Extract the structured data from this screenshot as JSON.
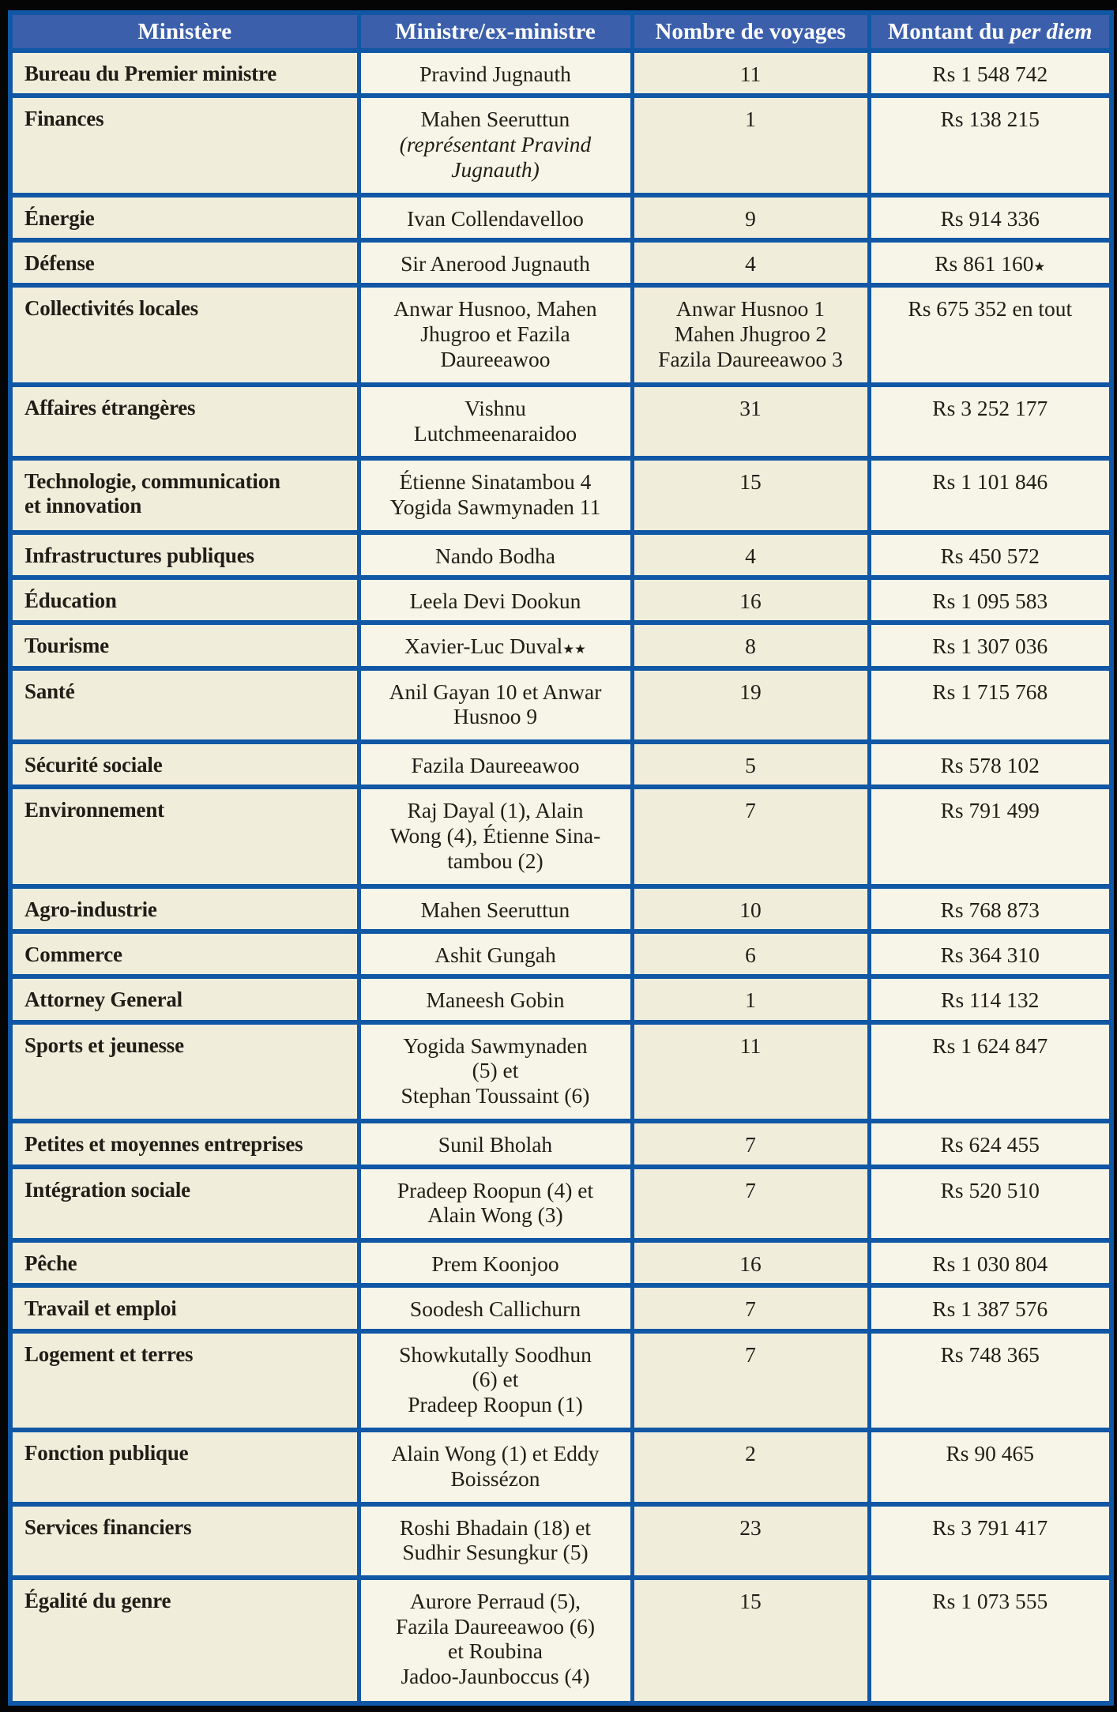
{
  "colors": {
    "frame_black": "#050505",
    "border_blue": "#1057a5",
    "header_blue": "#3b5fab",
    "beige": "#f0eedb",
    "cream": "#f7f5e7",
    "text_dark": "#211d17"
  },
  "table": {
    "headers": [
      {
        "segments": [
          {
            "t": "Ministère"
          }
        ]
      },
      {
        "segments": [
          {
            "t": "Ministre/ex-ministre"
          }
        ]
      },
      {
        "segments": [
          {
            "t": "Nombre de voyages"
          }
        ]
      },
      {
        "segments": [
          {
            "t": "Montant du "
          },
          {
            "t": "per diem",
            "s": "i"
          }
        ]
      }
    ],
    "rows": [
      {
        "ministry": [
          {
            "t": "Bureau du Premier ministre"
          }
        ],
        "minister": [
          {
            "t": "Pravind Jugnauth"
          }
        ],
        "trips": [
          {
            "t": "11"
          }
        ],
        "amount": [
          {
            "t": "Rs 1 548 742"
          }
        ]
      },
      {
        "ministry": [
          {
            "t": "Finances"
          }
        ],
        "minister": [
          {
            "t": "Mahen Seeruttun\n"
          },
          {
            "t": "(représentant Pravind\nJugnauth)",
            "s": "i"
          }
        ],
        "trips": [
          {
            "t": "1"
          }
        ],
        "amount": [
          {
            "t": "Rs 138 215"
          }
        ]
      },
      {
        "ministry": [
          {
            "t": "Énergie"
          }
        ],
        "minister": [
          {
            "t": "Ivan Collendavelloo"
          }
        ],
        "trips": [
          {
            "t": "9"
          }
        ],
        "amount": [
          {
            "t": "Rs 914 336"
          }
        ]
      },
      {
        "ministry": [
          {
            "t": "Défense"
          }
        ],
        "minister": [
          {
            "t": "Sir Anerood Jugnauth"
          }
        ],
        "trips": [
          {
            "t": "4"
          }
        ],
        "amount": [
          {
            "t": "Rs 861 160"
          },
          {
            "t": "★",
            "s": "sup"
          }
        ]
      },
      {
        "ministry": [
          {
            "t": "Collectivités locales"
          }
        ],
        "minister": [
          {
            "t": "Anwar Husnoo, Mahen\nJhugroo et Fazila\nDaureeawoo"
          }
        ],
        "trips": [
          {
            "t": "Anwar Husnoo 1\nMahen Jhugroo 2\nFazila Daureeawoo 3"
          }
        ],
        "amount": [
          {
            "t": "Rs 675 352 en tout"
          }
        ]
      },
      {
        "ministry": [
          {
            "t": "Affaires étrangères"
          }
        ],
        "minister": [
          {
            "t": "Vishnu\nLutchmeenaraidoo"
          }
        ],
        "trips": [
          {
            "t": "31"
          }
        ],
        "amount": [
          {
            "t": "Rs 3 252 177"
          }
        ]
      },
      {
        "ministry": [
          {
            "t": "Technologie, communication\net innovation"
          }
        ],
        "minister": [
          {
            "t": "Étienne Sinatambou 4\nYogida Sawmynaden 11"
          }
        ],
        "trips": [
          {
            "t": "15"
          }
        ],
        "amount": [
          {
            "t": "Rs 1 101 846"
          }
        ]
      },
      {
        "ministry": [
          {
            "t": "Infrastructures publiques"
          }
        ],
        "minister": [
          {
            "t": "Nando Bodha"
          }
        ],
        "trips": [
          {
            "t": "4"
          }
        ],
        "amount": [
          {
            "t": "Rs 450 572"
          }
        ]
      },
      {
        "ministry": [
          {
            "t": "Éducation"
          }
        ],
        "minister": [
          {
            "t": "Leela Devi Dookun"
          }
        ],
        "trips": [
          {
            "t": "16"
          }
        ],
        "amount": [
          {
            "t": "Rs 1 095 583"
          }
        ]
      },
      {
        "ministry": [
          {
            "t": "Tourisme"
          }
        ],
        "minister": [
          {
            "t": "Xavier-Luc Duval"
          },
          {
            "t": "★★",
            "s": "sup"
          }
        ],
        "trips": [
          {
            "t": "8"
          }
        ],
        "amount": [
          {
            "t": "Rs 1 307 036"
          }
        ]
      },
      {
        "ministry": [
          {
            "t": "Santé"
          }
        ],
        "minister": [
          {
            "t": "Anil Gayan 10 et Anwar\nHusnoo 9"
          }
        ],
        "trips": [
          {
            "t": "19"
          }
        ],
        "amount": [
          {
            "t": "Rs 1 715 768"
          }
        ]
      },
      {
        "ministry": [
          {
            "t": "Sécurité sociale"
          }
        ],
        "minister": [
          {
            "t": "Fazila Daureeawoo"
          }
        ],
        "trips": [
          {
            "t": "5"
          }
        ],
        "amount": [
          {
            "t": "Rs 578 102"
          }
        ]
      },
      {
        "ministry": [
          {
            "t": "Environnement"
          }
        ],
        "minister": [
          {
            "t": "Raj Dayal (1), Alain\nWong (4), Étienne Sina-\ntambou (2)"
          }
        ],
        "trips": [
          {
            "t": "7"
          }
        ],
        "amount": [
          {
            "t": "Rs 791 499"
          }
        ]
      },
      {
        "ministry": [
          {
            "t": "Agro-industrie"
          }
        ],
        "minister": [
          {
            "t": "Mahen Seeruttun"
          }
        ],
        "trips": [
          {
            "t": "10"
          }
        ],
        "amount": [
          {
            "t": "Rs 768 873"
          }
        ]
      },
      {
        "ministry": [
          {
            "t": "Commerce"
          }
        ],
        "minister": [
          {
            "t": "Ashit Gungah"
          }
        ],
        "trips": [
          {
            "t": "6"
          }
        ],
        "amount": [
          {
            "t": "Rs 364 310"
          }
        ]
      },
      {
        "ministry": [
          {
            "t": "Attorney General"
          }
        ],
        "minister": [
          {
            "t": "Maneesh Gobin"
          }
        ],
        "trips": [
          {
            "t": "1"
          }
        ],
        "amount": [
          {
            "t": "Rs 114 132"
          }
        ]
      },
      {
        "ministry": [
          {
            "t": "Sports et jeunesse"
          }
        ],
        "minister": [
          {
            "t": "Yogida Sawmynaden\n(5) et\nStephan Toussaint (6)"
          }
        ],
        "trips": [
          {
            "t": "11"
          }
        ],
        "amount": [
          {
            "t": "Rs 1 624 847"
          }
        ]
      },
      {
        "ministry": [
          {
            "t": "Petites et moyennes entreprises"
          }
        ],
        "minister": [
          {
            "t": "Sunil Bholah"
          }
        ],
        "trips": [
          {
            "t": "7"
          }
        ],
        "amount": [
          {
            "t": "Rs 624 455"
          }
        ]
      },
      {
        "ministry": [
          {
            "t": "Intégration sociale"
          }
        ],
        "minister": [
          {
            "t": "Pradeep Roopun (4) et\nAlain Wong (3)"
          }
        ],
        "trips": [
          {
            "t": "7"
          }
        ],
        "amount": [
          {
            "t": "Rs 520 510"
          }
        ]
      },
      {
        "ministry": [
          {
            "t": "Pêche"
          }
        ],
        "minister": [
          {
            "t": "Prem Koonjoo"
          }
        ],
        "trips": [
          {
            "t": "16"
          }
        ],
        "amount": [
          {
            "t": "Rs 1 030 804"
          }
        ]
      },
      {
        "ministry": [
          {
            "t": "Travail et emploi"
          }
        ],
        "minister": [
          {
            "t": "Soodesh Callichurn"
          }
        ],
        "trips": [
          {
            "t": "7"
          }
        ],
        "amount": [
          {
            "t": "Rs 1 387 576"
          }
        ]
      },
      {
        "ministry": [
          {
            "t": "Logement et terres"
          }
        ],
        "minister": [
          {
            "t": "Showkutally Soodhun\n(6) et\nPradeep Roopun (1)"
          }
        ],
        "trips": [
          {
            "t": "7"
          }
        ],
        "amount": [
          {
            "t": "Rs 748 365"
          }
        ]
      },
      {
        "ministry": [
          {
            "t": "Fonction publique"
          }
        ],
        "minister": [
          {
            "t": "Alain Wong (1) et Eddy\nBoissézon"
          }
        ],
        "trips": [
          {
            "t": "2"
          }
        ],
        "amount": [
          {
            "t": "Rs 90 465"
          }
        ]
      },
      {
        "ministry": [
          {
            "t": "Services financiers"
          }
        ],
        "minister": [
          {
            "t": "Roshi Bhadain (18) et\nSudhir Sesungkur (5)"
          }
        ],
        "trips": [
          {
            "t": "23"
          }
        ],
        "amount": [
          {
            "t": "Rs 3 791 417"
          }
        ]
      },
      {
        "ministry": [
          {
            "t": "Égalité du genre"
          }
        ],
        "minister": [
          {
            "t": "Aurore Perraud (5),\nFazila Daureeawoo (6)\net Roubina\nJadoo-Jaunboccus (4)"
          }
        ],
        "trips": [
          {
            "t": "15"
          }
        ],
        "amount": [
          {
            "t": "Rs 1 073 555"
          }
        ]
      }
    ]
  },
  "chart_data": {
    "type": "table",
    "title": "Montant du per diem par ministère",
    "columns": [
      "Ministère",
      "Ministre/ex-ministre",
      "Nombre de voyages",
      "Montant du per diem"
    ],
    "rows": [
      [
        "Bureau du Premier ministre",
        "Pravind Jugnauth",
        "11",
        "Rs 1 548 742"
      ],
      [
        "Finances",
        "Mahen Seeruttun (représentant Pravind Jugnauth)",
        "1",
        "Rs 138 215"
      ],
      [
        "Énergie",
        "Ivan Collendavelloo",
        "9",
        "Rs 914 336"
      ],
      [
        "Défense",
        "Sir Anerood Jugnauth",
        "4",
        "Rs 861 160★"
      ],
      [
        "Collectivités locales",
        "Anwar Husnoo, Mahen Jhugroo et Fazila Daureeawoo",
        "Anwar Husnoo 1; Mahen Jhugroo 2; Fazila Daureeawoo 3",
        "Rs 675 352 en tout"
      ],
      [
        "Affaires étrangères",
        "Vishnu Lutchmeenaraidoo",
        "31",
        "Rs 3 252 177"
      ],
      [
        "Technologie, communication et innovation",
        "Étienne Sinatambou 4; Yogida Sawmynaden 11",
        "15",
        "Rs 1 101 846"
      ],
      [
        "Infrastructures publiques",
        "Nando Bodha",
        "4",
        "Rs 450 572"
      ],
      [
        "Éducation",
        "Leela Devi Dookun",
        "16",
        "Rs 1 095 583"
      ],
      [
        "Tourisme",
        "Xavier-Luc Duval★★",
        "8",
        "Rs 1 307 036"
      ],
      [
        "Santé",
        "Anil Gayan 10 et Anwar Husnoo 9",
        "19",
        "Rs 1 715 768"
      ],
      [
        "Sécurité sociale",
        "Fazila Daureeawoo",
        "5",
        "Rs 578 102"
      ],
      [
        "Environnement",
        "Raj Dayal (1), Alain Wong (4), Étienne Sinatambou (2)",
        "7",
        "Rs 791 499"
      ],
      [
        "Agro-industrie",
        "Mahen Seeruttun",
        "10",
        "Rs 768 873"
      ],
      [
        "Commerce",
        "Ashit Gungah",
        "6",
        "Rs 364 310"
      ],
      [
        "Attorney General",
        "Maneesh Gobin",
        "1",
        "Rs 114 132"
      ],
      [
        "Sports et jeunesse",
        "Yogida Sawmynaden (5) et Stephan Toussaint (6)",
        "11",
        "Rs 1 624 847"
      ],
      [
        "Petites et moyennes entreprises",
        "Sunil Bholah",
        "7",
        "Rs 624 455"
      ],
      [
        "Intégration sociale",
        "Pradeep Roopun (4) et Alain Wong (3)",
        "7",
        "Rs 520 510"
      ],
      [
        "Pêche",
        "Prem Koonjoo",
        "16",
        "Rs 1 030 804"
      ],
      [
        "Travail et emploi",
        "Soodesh Callichurn",
        "7",
        "Rs 1 387 576"
      ],
      [
        "Logement et terres",
        "Showkutally Soodhun (6) et Pradeep Roopun (1)",
        "7",
        "Rs 748 365"
      ],
      [
        "Fonction publique",
        "Alain Wong (1) et Eddy Boissézon",
        "2",
        "Rs 90 465"
      ],
      [
        "Services financiers",
        "Roshi Bhadain (18) et Sudhir Sesungkur (5)",
        "23",
        "Rs 3 791 417"
      ],
      [
        "Égalité du genre",
        "Aurore Perraud (5), Fazila Daureeawoo (6) et Roubina Jadoo-Jaunboccus (4)",
        "15",
        "Rs 1 073 555"
      ]
    ]
  }
}
